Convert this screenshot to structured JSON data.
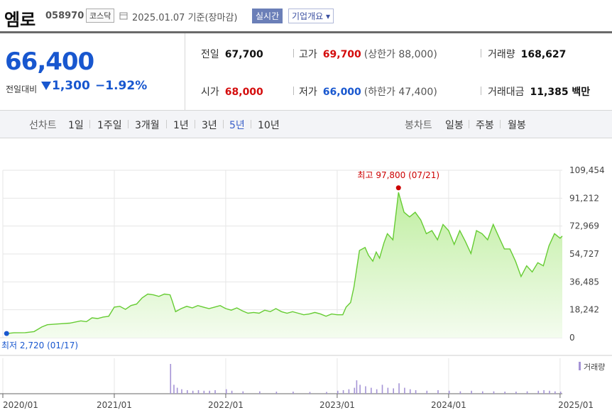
{
  "header": {
    "name": "엠로",
    "code": "058970",
    "market": "코스닥",
    "date": "2025.01.07 기준(장마감)",
    "live_btn": "실시간",
    "overview_btn": "기업개요 ▾"
  },
  "quote": {
    "price": "66,400",
    "change_label": "전일대비",
    "change_value": "1,300",
    "change_pct": "−1.92%",
    "prev_label": "전일",
    "prev": "67,700",
    "high_label": "고가",
    "high": "69,700",
    "upper_limit": "(상한가 88,000)",
    "volume_label": "거래량",
    "volume": "168,627",
    "open_label": "시가",
    "open": "68,000",
    "low_label": "저가",
    "low": "66,000",
    "lower_limit": "(하한가 47,400)",
    "amount_label": "거래대금",
    "amount": "11,385 백만"
  },
  "period_bar": {
    "line_label": "선차트",
    "line_periods": [
      "1일",
      "1주일",
      "3개월",
      "1년",
      "3년",
      "5년",
      "10년"
    ],
    "active_line": 5,
    "candle_label": "봉차트",
    "candle_periods": [
      "일봉",
      "주봉",
      "월봉"
    ]
  },
  "colors": {
    "line": "#66cc33",
    "fill": "#e2f7d4",
    "max": "#cc0000",
    "min": "#1857cf",
    "volume": "#a594d6"
  },
  "chart_data": {
    "type": "area",
    "title": "",
    "x_ticks": [
      "2020/01",
      "2021/01",
      "2022/01",
      "2023/01",
      "2024/01",
      "2025/01"
    ],
    "y_ticks": [
      0,
      18242,
      36485,
      54727,
      72969,
      91212,
      109454
    ],
    "y_tick_labels": [
      "0",
      "18,242",
      "36,485",
      "54,727",
      "72,969",
      "91,212",
      "109,454"
    ],
    "ylim": [
      0,
      109454
    ],
    "xlim": [
      2020.0,
      2025.02
    ],
    "grid": true,
    "max_label": "최고 97,800 (07/21)",
    "min_label": "최저 2,720 (01/17)",
    "max_point": {
      "x": 2023.55,
      "y": 97800
    },
    "min_point": {
      "x": 2020.04,
      "y": 2720
    },
    "volume_label": "거래량",
    "series": [
      {
        "x": [
          2020.04,
          2020.1,
          2020.2,
          2020.28,
          2020.35,
          2020.4,
          2020.5,
          2020.6,
          2020.7,
          2020.75,
          2020.8,
          2020.85,
          2020.9,
          2020.95,
          2021.0,
          2021.05,
          2021.1,
          2021.15,
          2021.2,
          2021.25,
          2021.3,
          2021.35,
          2021.4,
          2021.45,
          2021.5,
          2021.52,
          2021.55,
          2021.6,
          2021.65,
          2021.7,
          2021.75,
          2021.8,
          2021.85,
          2021.9,
          2021.95,
          2022.0,
          2022.05,
          2022.1,
          2022.15,
          2022.2,
          2022.25,
          2022.3,
          2022.35,
          2022.4,
          2022.45,
          2022.5,
          2022.55,
          2022.6,
          2022.65,
          2022.7,
          2022.75,
          2022.8,
          2022.85,
          2022.9,
          2022.95,
          2023.0,
          2023.05,
          2023.08,
          2023.12,
          2023.15,
          2023.2,
          2023.25,
          2023.28,
          2023.32,
          2023.35,
          2023.38,
          2023.42,
          2023.45,
          2023.5,
          2023.55,
          2023.6,
          2023.65,
          2023.7,
          2023.75,
          2023.8,
          2023.85,
          2023.9,
          2023.95,
          2024.0,
          2024.05,
          2024.1,
          2024.15,
          2024.2,
          2024.25,
          2024.3,
          2024.35,
          2024.4,
          2024.45,
          2024.5,
          2024.55,
          2024.6,
          2024.65,
          2024.7,
          2024.75,
          2024.8,
          2024.85,
          2024.9,
          2024.95,
          2025.0,
          2025.02
        ],
        "y": [
          2720,
          3200,
          3300,
          4000,
          7000,
          8500,
          9000,
          9500,
          11000,
          10500,
          13000,
          12500,
          13500,
          14000,
          20000,
          20500,
          18500,
          21000,
          22000,
          26000,
          28500,
          28000,
          27000,
          28500,
          28000,
          24000,
          17000,
          19000,
          20500,
          19500,
          21000,
          20000,
          19000,
          20000,
          21000,
          19000,
          18000,
          19500,
          17500,
          16000,
          16500,
          16000,
          18000,
          17000,
          19000,
          17000,
          16000,
          17000,
          16000,
          15000,
          15500,
          16500,
          15500,
          14000,
          15500,
          15000,
          15000,
          20000,
          23000,
          33000,
          57000,
          59000,
          54000,
          50000,
          56000,
          52000,
          62000,
          68000,
          64000,
          95000,
          82000,
          79000,
          82000,
          77000,
          68000,
          70000,
          64000,
          74000,
          70000,
          61000,
          70000,
          63000,
          55000,
          70000,
          68000,
          64000,
          74000,
          66000,
          58000,
          58000,
          50000,
          40000,
          47000,
          43000,
          49000,
          47000,
          60000,
          68000,
          65000,
          66400
        ]
      }
    ],
    "volume_bars": [
      {
        "x": 2021.5,
        "v": 1.0
      },
      {
        "x": 2021.53,
        "v": 0.3
      },
      {
        "x": 2021.56,
        "v": 0.2
      },
      {
        "x": 2021.6,
        "v": 0.15
      },
      {
        "x": 2021.65,
        "v": 0.12
      },
      {
        "x": 2021.7,
        "v": 0.1
      },
      {
        "x": 2021.75,
        "v": 0.12
      },
      {
        "x": 2021.8,
        "v": 0.1
      },
      {
        "x": 2021.85,
        "v": 0.1
      },
      {
        "x": 2021.9,
        "v": 0.12
      },
      {
        "x": 2022.0,
        "v": 0.15
      },
      {
        "x": 2022.05,
        "v": 0.1
      },
      {
        "x": 2022.15,
        "v": 0.08
      },
      {
        "x": 2022.3,
        "v": 0.08
      },
      {
        "x": 2022.45,
        "v": 0.07
      },
      {
        "x": 2022.6,
        "v": 0.07
      },
      {
        "x": 2022.75,
        "v": 0.06
      },
      {
        "x": 2022.9,
        "v": 0.06
      },
      {
        "x": 2023.0,
        "v": 0.1
      },
      {
        "x": 2023.05,
        "v": 0.12
      },
      {
        "x": 2023.1,
        "v": 0.15
      },
      {
        "x": 2023.15,
        "v": 0.2
      },
      {
        "x": 2023.17,
        "v": 0.45
      },
      {
        "x": 2023.2,
        "v": 0.3
      },
      {
        "x": 2023.25,
        "v": 0.25
      },
      {
        "x": 2023.3,
        "v": 0.2
      },
      {
        "x": 2023.35,
        "v": 0.15
      },
      {
        "x": 2023.4,
        "v": 0.3
      },
      {
        "x": 2023.45,
        "v": 0.2
      },
      {
        "x": 2023.5,
        "v": 0.18
      },
      {
        "x": 2023.55,
        "v": 0.35
      },
      {
        "x": 2023.6,
        "v": 0.2
      },
      {
        "x": 2023.65,
        "v": 0.15
      },
      {
        "x": 2023.7,
        "v": 0.12
      },
      {
        "x": 2023.8,
        "v": 0.1
      },
      {
        "x": 2023.9,
        "v": 0.12
      },
      {
        "x": 2024.0,
        "v": 0.1
      },
      {
        "x": 2024.1,
        "v": 0.08
      },
      {
        "x": 2024.2,
        "v": 0.1
      },
      {
        "x": 2024.3,
        "v": 0.08
      },
      {
        "x": 2024.4,
        "v": 0.08
      },
      {
        "x": 2024.5,
        "v": 0.07
      },
      {
        "x": 2024.6,
        "v": 0.07
      },
      {
        "x": 2024.7,
        "v": 0.08
      },
      {
        "x": 2024.8,
        "v": 0.1
      },
      {
        "x": 2024.85,
        "v": 0.12
      },
      {
        "x": 2024.9,
        "v": 0.1
      },
      {
        "x": 2024.95,
        "v": 0.08
      },
      {
        "x": 2025.0,
        "v": 0.07
      }
    ]
  }
}
